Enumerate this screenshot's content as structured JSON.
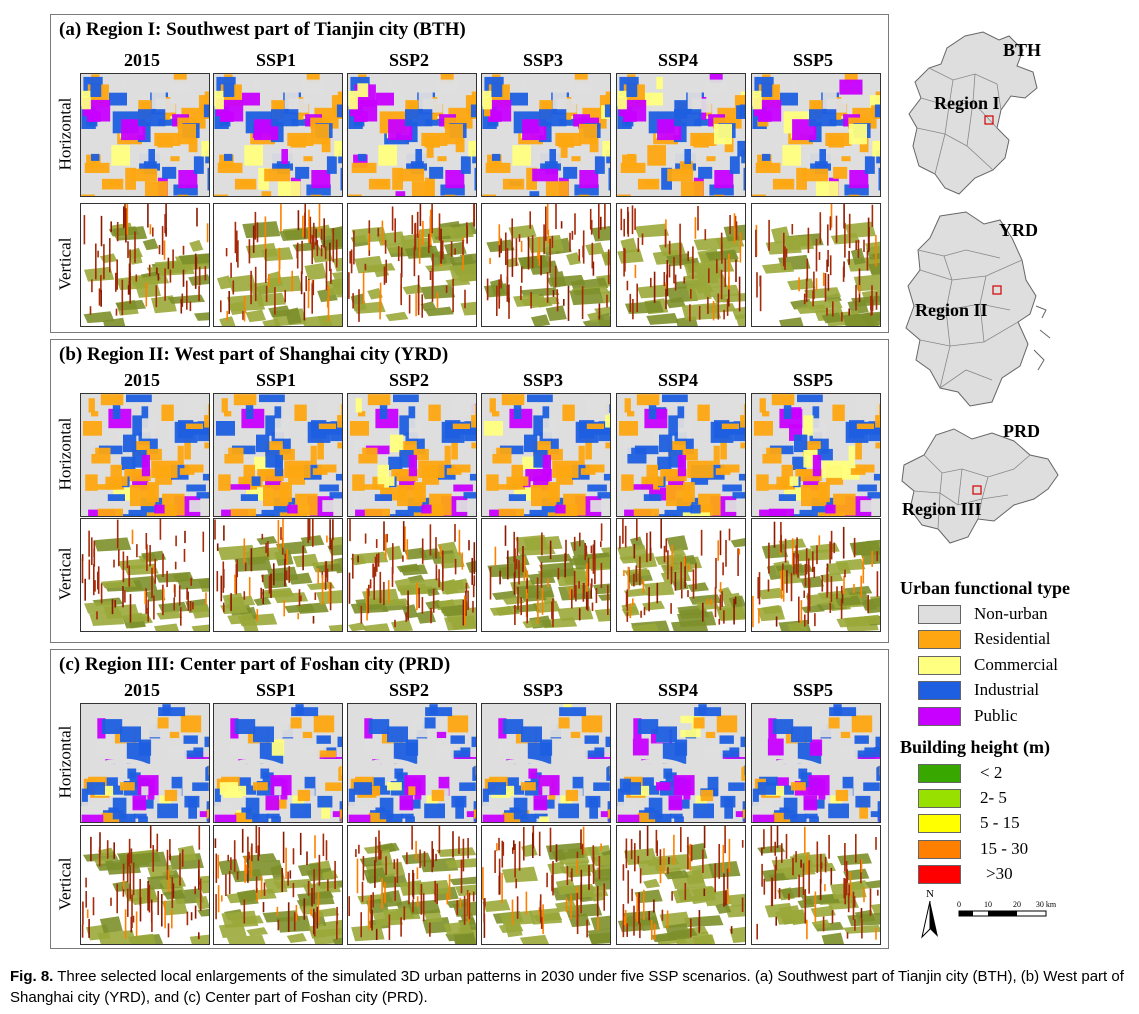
{
  "panels": [
    {
      "id": "a",
      "title": "(a) Region I: Southwest part of Tianjin city (BTH)",
      "seed": 11
    },
    {
      "id": "b",
      "title": "(b) Region II: West part of Shanghai city (YRD)",
      "seed": 37
    },
    {
      "id": "c",
      "title": "(c) Region III: Center part of Foshan city (PRD)",
      "seed": 73
    }
  ],
  "columns": [
    "2015",
    "SSP1",
    "SSP2",
    "SSP3",
    "SSP4",
    "SSP5"
  ],
  "rows": [
    "Horizontal",
    "Vertical"
  ],
  "maps": [
    {
      "name": "BTH",
      "region": "Region I"
    },
    {
      "name": "YRD",
      "region": "Region II"
    },
    {
      "name": "PRD",
      "region": "Region III"
    }
  ],
  "legend": {
    "functional_title": "Urban functional type",
    "functional": [
      {
        "label": "Non-urban",
        "color": "#dedede"
      },
      {
        "label": "Residential",
        "color": "#fda611"
      },
      {
        "label": "Commercial",
        "color": "#ffff80"
      },
      {
        "label": "Industrial",
        "color": "#1d5fe0"
      },
      {
        "label": "Public",
        "color": "#c800ff"
      }
    ],
    "height_title": "Building height (m)",
    "height": [
      {
        "label": "< 2",
        "color": "#38a800"
      },
      {
        "label": "2- 5",
        "color": "#98e000"
      },
      {
        "label": "5 - 15",
        "color": "#ffff00"
      },
      {
        "label": "15 - 30",
        "color": "#ff8000"
      },
      {
        "label": ">30",
        "color": "#ff0000"
      }
    ]
  },
  "scale": {
    "north": "N",
    "ticks": [
      "0",
      "10",
      "20",
      "30 km"
    ]
  },
  "caption": {
    "label": "Fig. 8.",
    "text": "Three selected local enlargements of the simulated 3D urban patterns in 2030 under five SSP scenarios. (a) Southwest part of Tianjin city (BTH), (b) West part of Shanghai city (YRD), and (c) Center part of Foshan city (PRD)."
  }
}
